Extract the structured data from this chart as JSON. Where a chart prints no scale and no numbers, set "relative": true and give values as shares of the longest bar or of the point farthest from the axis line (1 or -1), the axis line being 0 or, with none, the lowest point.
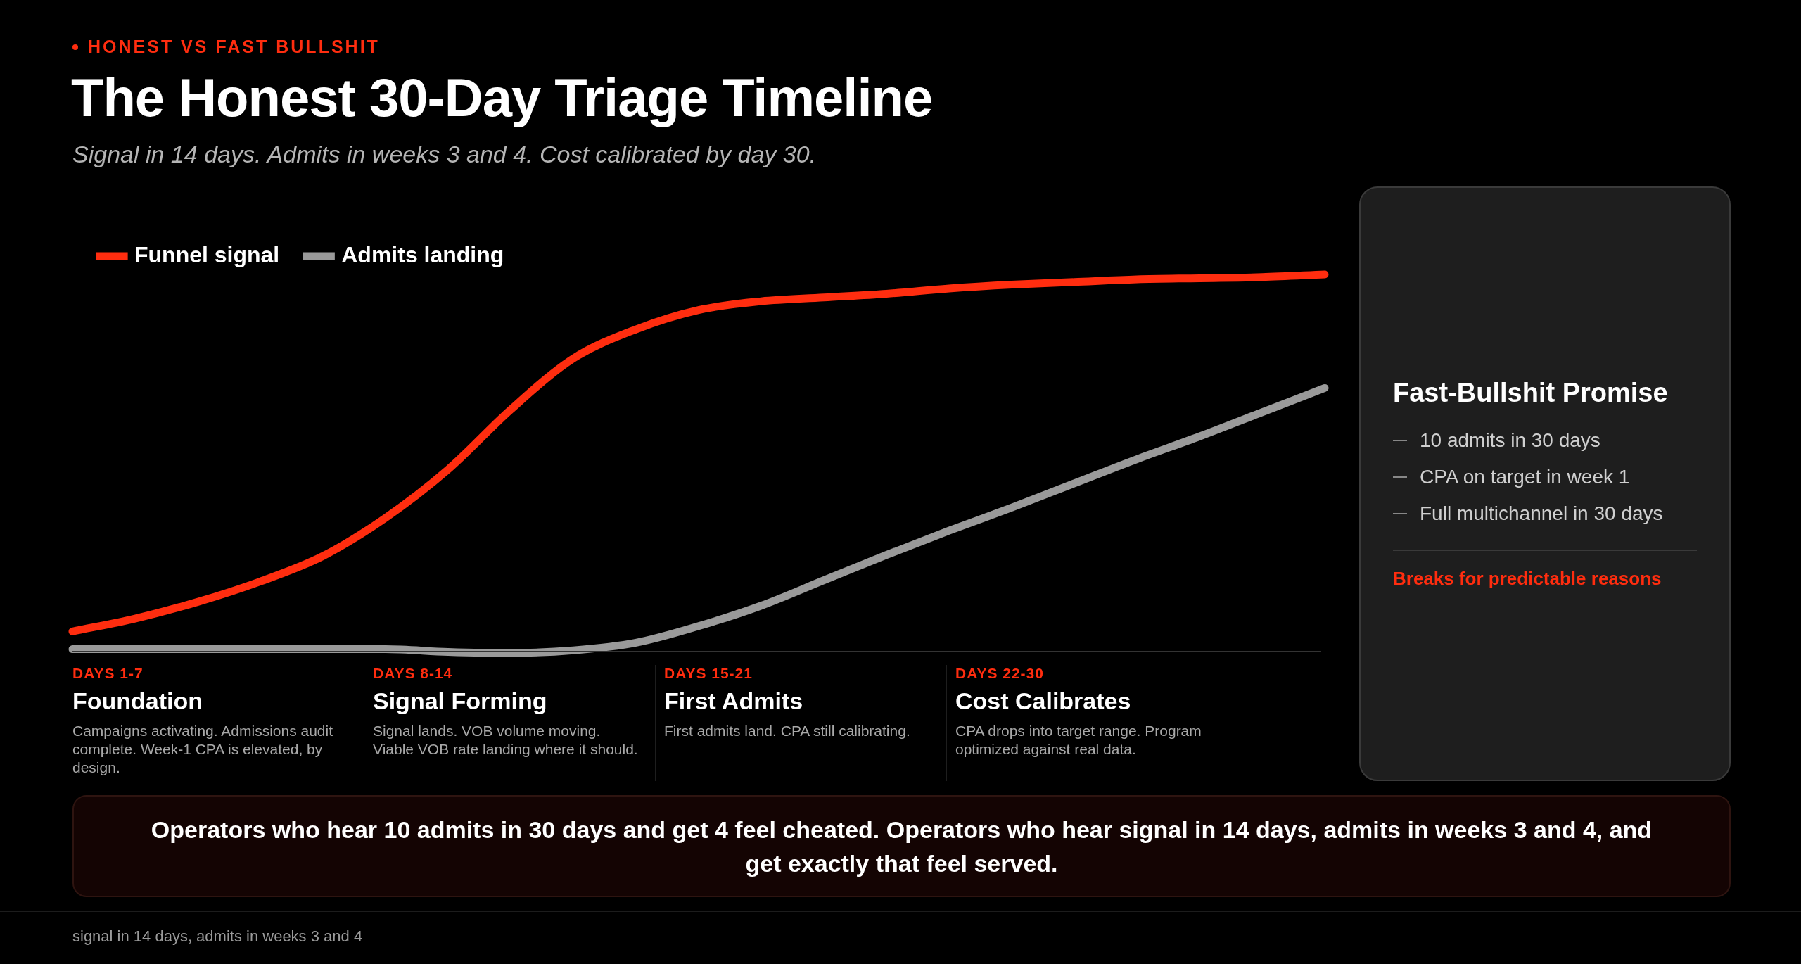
{
  "chart_data": {
    "type": "line",
    "title": "The Honest 30-Day Triage Timeline",
    "subtitle": "Signal in 14 days. Admits in weeks 3 and 4. Cost calibrated by day 30.",
    "relative": true,
    "legend": "top left",
    "categories": [
      null,
      null,
      null,
      null,
      null,
      null,
      null,
      null,
      null,
      null,
      null,
      null,
      null,
      null,
      null,
      null,
      null,
      null,
      null,
      null,
      null
    ],
    "series": [
      {
        "name": "Funnel signal",
        "color": "#ff2d0f",
        "values": [
          0.057,
          0.091,
          0.135,
          0.189,
          0.256,
          0.357,
          0.485,
          0.643,
          0.778,
          0.855,
          0.906,
          0.929,
          0.939,
          0.949,
          0.963,
          0.973,
          0.98,
          0.987,
          0.99,
          0.993,
          1
        ]
      },
      {
        "name": "Admits landing",
        "color": "#9a9a9a",
        "values": [
          0.01,
          0.01,
          0.01,
          0.01,
          0.01,
          0.01,
          0.003,
          0,
          0.007,
          0.027,
          0.071,
          0.125,
          0.192,
          0.259,
          0.323,
          0.384,
          0.448,
          0.512,
          0.572,
          0.636,
          0.7
        ]
      }
    ],
    "annotations": [
      "HONEST VS FAST BULLSHIT",
      "DAYS 1-7",
      "Foundation",
      "Campaigns activating. Admissions audit complete. Week-1 CPA is elevated, by design.",
      "DAYS 8-14",
      "Signal Forming",
      "Signal lands. VOB volume moving. Viable VOB rate landing where it should.",
      "DAYS 15-21",
      "First Admits",
      "First admits land. CPA still calibrating.",
      "DAYS 22-30",
      "Cost Calibrates",
      "CPA drops into target range. Program optimized against real data.",
      "Fast-Bullshit Promise",
      "10 admits in 30 days",
      "CPA on target in week 1",
      "Full multichannel in 30 days",
      "Breaks for predictable reasons",
      "Operators who hear 10 admits in 30 days and get 4 feel cheated. Operators who hear signal in 14 days, admits in weeks 3 and 4, and get exactly that feel served.",
      "signal in 14 days, admits in weeks 3 and 4"
    ]
  }
}
